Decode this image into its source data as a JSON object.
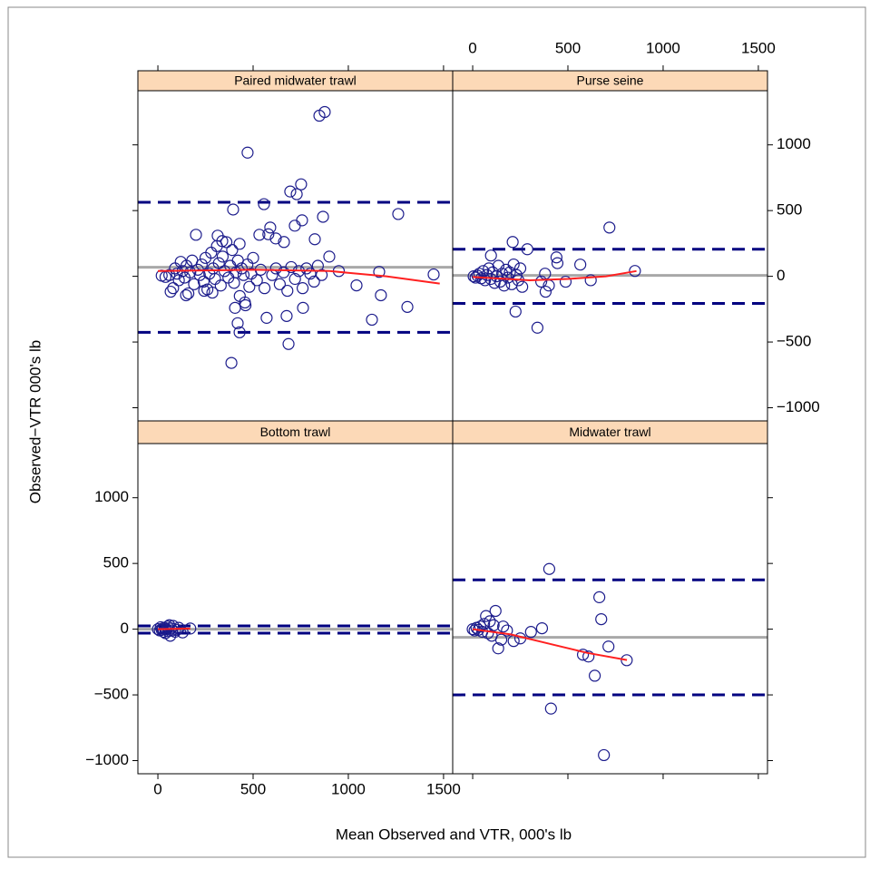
{
  "chart_data": {
    "type": "scatter",
    "xlabel": "Mean Observed and VTR, 000's lb",
    "ylabel": "Observed−VTR 000's lb",
    "xlim": [
      -105,
      1548
    ],
    "ylim": [
      -1100,
      1412
    ],
    "xticks": [
      0,
      500,
      1000,
      1500
    ],
    "yticks": [
      {
        "value": -1000,
        "label": "−1000"
      },
      {
        "value": -500,
        "label": "−500"
      },
      0,
      500,
      1000
    ],
    "point_color": "#1c1c8c",
    "smooth_color": "#ff2020",
    "mean_color": "#a8a8a8",
    "limit_color": "#000080",
    "strip_color": "#fcd9b7",
    "panels": [
      {
        "title": "Paired midwater trawl",
        "x": [
          20,
          40,
          60,
          80,
          90,
          100,
          110,
          120,
          130,
          140,
          150,
          160,
          170,
          180,
          190,
          200,
          210,
          220,
          230,
          240,
          250,
          260,
          270,
          280,
          290,
          300,
          310,
          320,
          330,
          340,
          350,
          360,
          370,
          380,
          390,
          400,
          410,
          420,
          430,
          440,
          450,
          460,
          470,
          480,
          490,
          500,
          520,
          540,
          560,
          580,
          600,
          620,
          640,
          660,
          680,
          700,
          720,
          740,
          760,
          780,
          800,
          820,
          840,
          860,
          900,
          950,
          848,
          876,
          471,
          395,
          557,
          695,
          729,
          752,
          867,
          1262,
          590,
          662,
          824,
          757,
          719,
          314,
          338,
          429,
          533,
          619,
          386,
          429,
          419,
          571,
          676,
          686,
          762,
          1124,
          1310,
          1171,
          1043,
          1448,
          1162,
          286,
          67,
          148,
          243,
          405,
          457
        ],
        "values": [
          5,
          -5,
          10,
          -90,
          60,
          20,
          -30,
          110,
          40,
          -10,
          80,
          -130,
          30,
          120,
          -60,
          316,
          50,
          10,
          90,
          -40,
          140,
          -100,
          20,
          180,
          60,
          -20,
          230,
          100,
          -70,
          150,
          40,
          260,
          -10,
          80,
          200,
          -50,
          30,
          120,
          -150,
          60,
          10,
          -220,
          90,
          -80,
          20,
          140,
          -30,
          50,
          -90,
          320,
          10,
          60,
          -60,
          30,
          -110,
          70,
          -20,
          40,
          -90,
          60,
          20,
          -40,
          80,
          10,
          150,
          40,
          1222,
          1250,
          941,
          508,
          549,
          645,
          625,
          700,
          453,
          474,
          371,
          261,
          282,
          426,
          385,
          309,
          268,
          247,
          316,
          288,
          -659,
          -426,
          -357,
          -316,
          -302,
          -515,
          -240,
          -330,
          -233,
          -144,
          -69,
          14,
          34,
          -124,
          -117,
          -144,
          -110,
          -240,
          -199
        ],
        "mean": 69,
        "limits": [
          563,
          -426
        ],
        "smooth_x": [
          0,
          500,
          900,
          1200,
          1480
        ],
        "smooth_y": [
          40,
          50,
          40,
          0,
          -55
        ]
      },
      {
        "title": "Purse seine",
        "x": [
          5,
          15,
          25,
          35,
          45,
          55,
          65,
          75,
          85,
          95,
          96,
          105,
          115,
          125,
          135,
          145,
          155,
          165,
          175,
          185,
          195,
          205,
          210,
          215,
          225,
          230,
          240,
          250,
          260,
          287,
          340,
          383,
          360,
          380,
          400,
          440,
          445,
          488,
          565,
          718,
          852,
          620
        ],
        "values": [
          0,
          -10,
          5,
          20,
          -15,
          40,
          -30,
          10,
          60,
          -20,
          158,
          30,
          -50,
          0,
          80,
          -40,
          20,
          -70,
          50,
          -10,
          30,
          -60,
          261,
          90,
          -268,
          10,
          -30,
          60,
          -80,
          206,
          -391,
          -117,
          -40,
          20,
          -70,
          144,
          100,
          -41,
          89,
          371,
          41,
          -30
        ],
        "mean": 7,
        "limits": [
          206,
          -206
        ],
        "smooth_x": [
          0,
          300,
          500,
          700,
          860
        ],
        "smooth_y": [
          -5,
          -30,
          -20,
          0,
          40
        ]
      },
      {
        "title": "Bottom trawl",
        "x": [
          0,
          10,
          15,
          20,
          25,
          30,
          35,
          40,
          45,
          50,
          55,
          60,
          65,
          70,
          75,
          80,
          90,
          100,
          110,
          130,
          170
        ],
        "values": [
          0,
          -10,
          15,
          -5,
          5,
          -20,
          10,
          -30,
          0,
          20,
          -15,
          30,
          -50,
          5,
          -10,
          25,
          -20,
          -5,
          10,
          -25,
          5
        ],
        "mean": 0,
        "limits": [
          25,
          -30
        ],
        "smooth_x": [
          0,
          170
        ],
        "smooth_y": [
          0,
          5
        ]
      },
      {
        "title": "Midwater trawl",
        "x": [
          0,
          10,
          20,
          30,
          40,
          50,
          60,
          70,
          80,
          90,
          100,
          110,
          120,
          134,
          150,
          160,
          180,
          215,
          250,
          306,
          364,
          402,
          411,
          579,
          608,
          641,
          665,
          675,
          689,
          713,
          809
        ],
        "values": [
          0,
          -10,
          10,
          -5,
          20,
          -20,
          40,
          100,
          -30,
          60,
          -50,
          30,
          139,
          -146,
          -80,
          20,
          -10,
          -90,
          -70,
          -21,
          7,
          458,
          -604,
          -194,
          -208,
          -354,
          243,
          76,
          -958,
          -132,
          -236
        ],
        "mean": -62,
        "limits": [
          375,
          -500
        ],
        "smooth_x": [
          0,
          200,
          400,
          600,
          810
        ],
        "smooth_y": [
          0,
          -40,
          -110,
          -180,
          -235
        ]
      }
    ]
  }
}
